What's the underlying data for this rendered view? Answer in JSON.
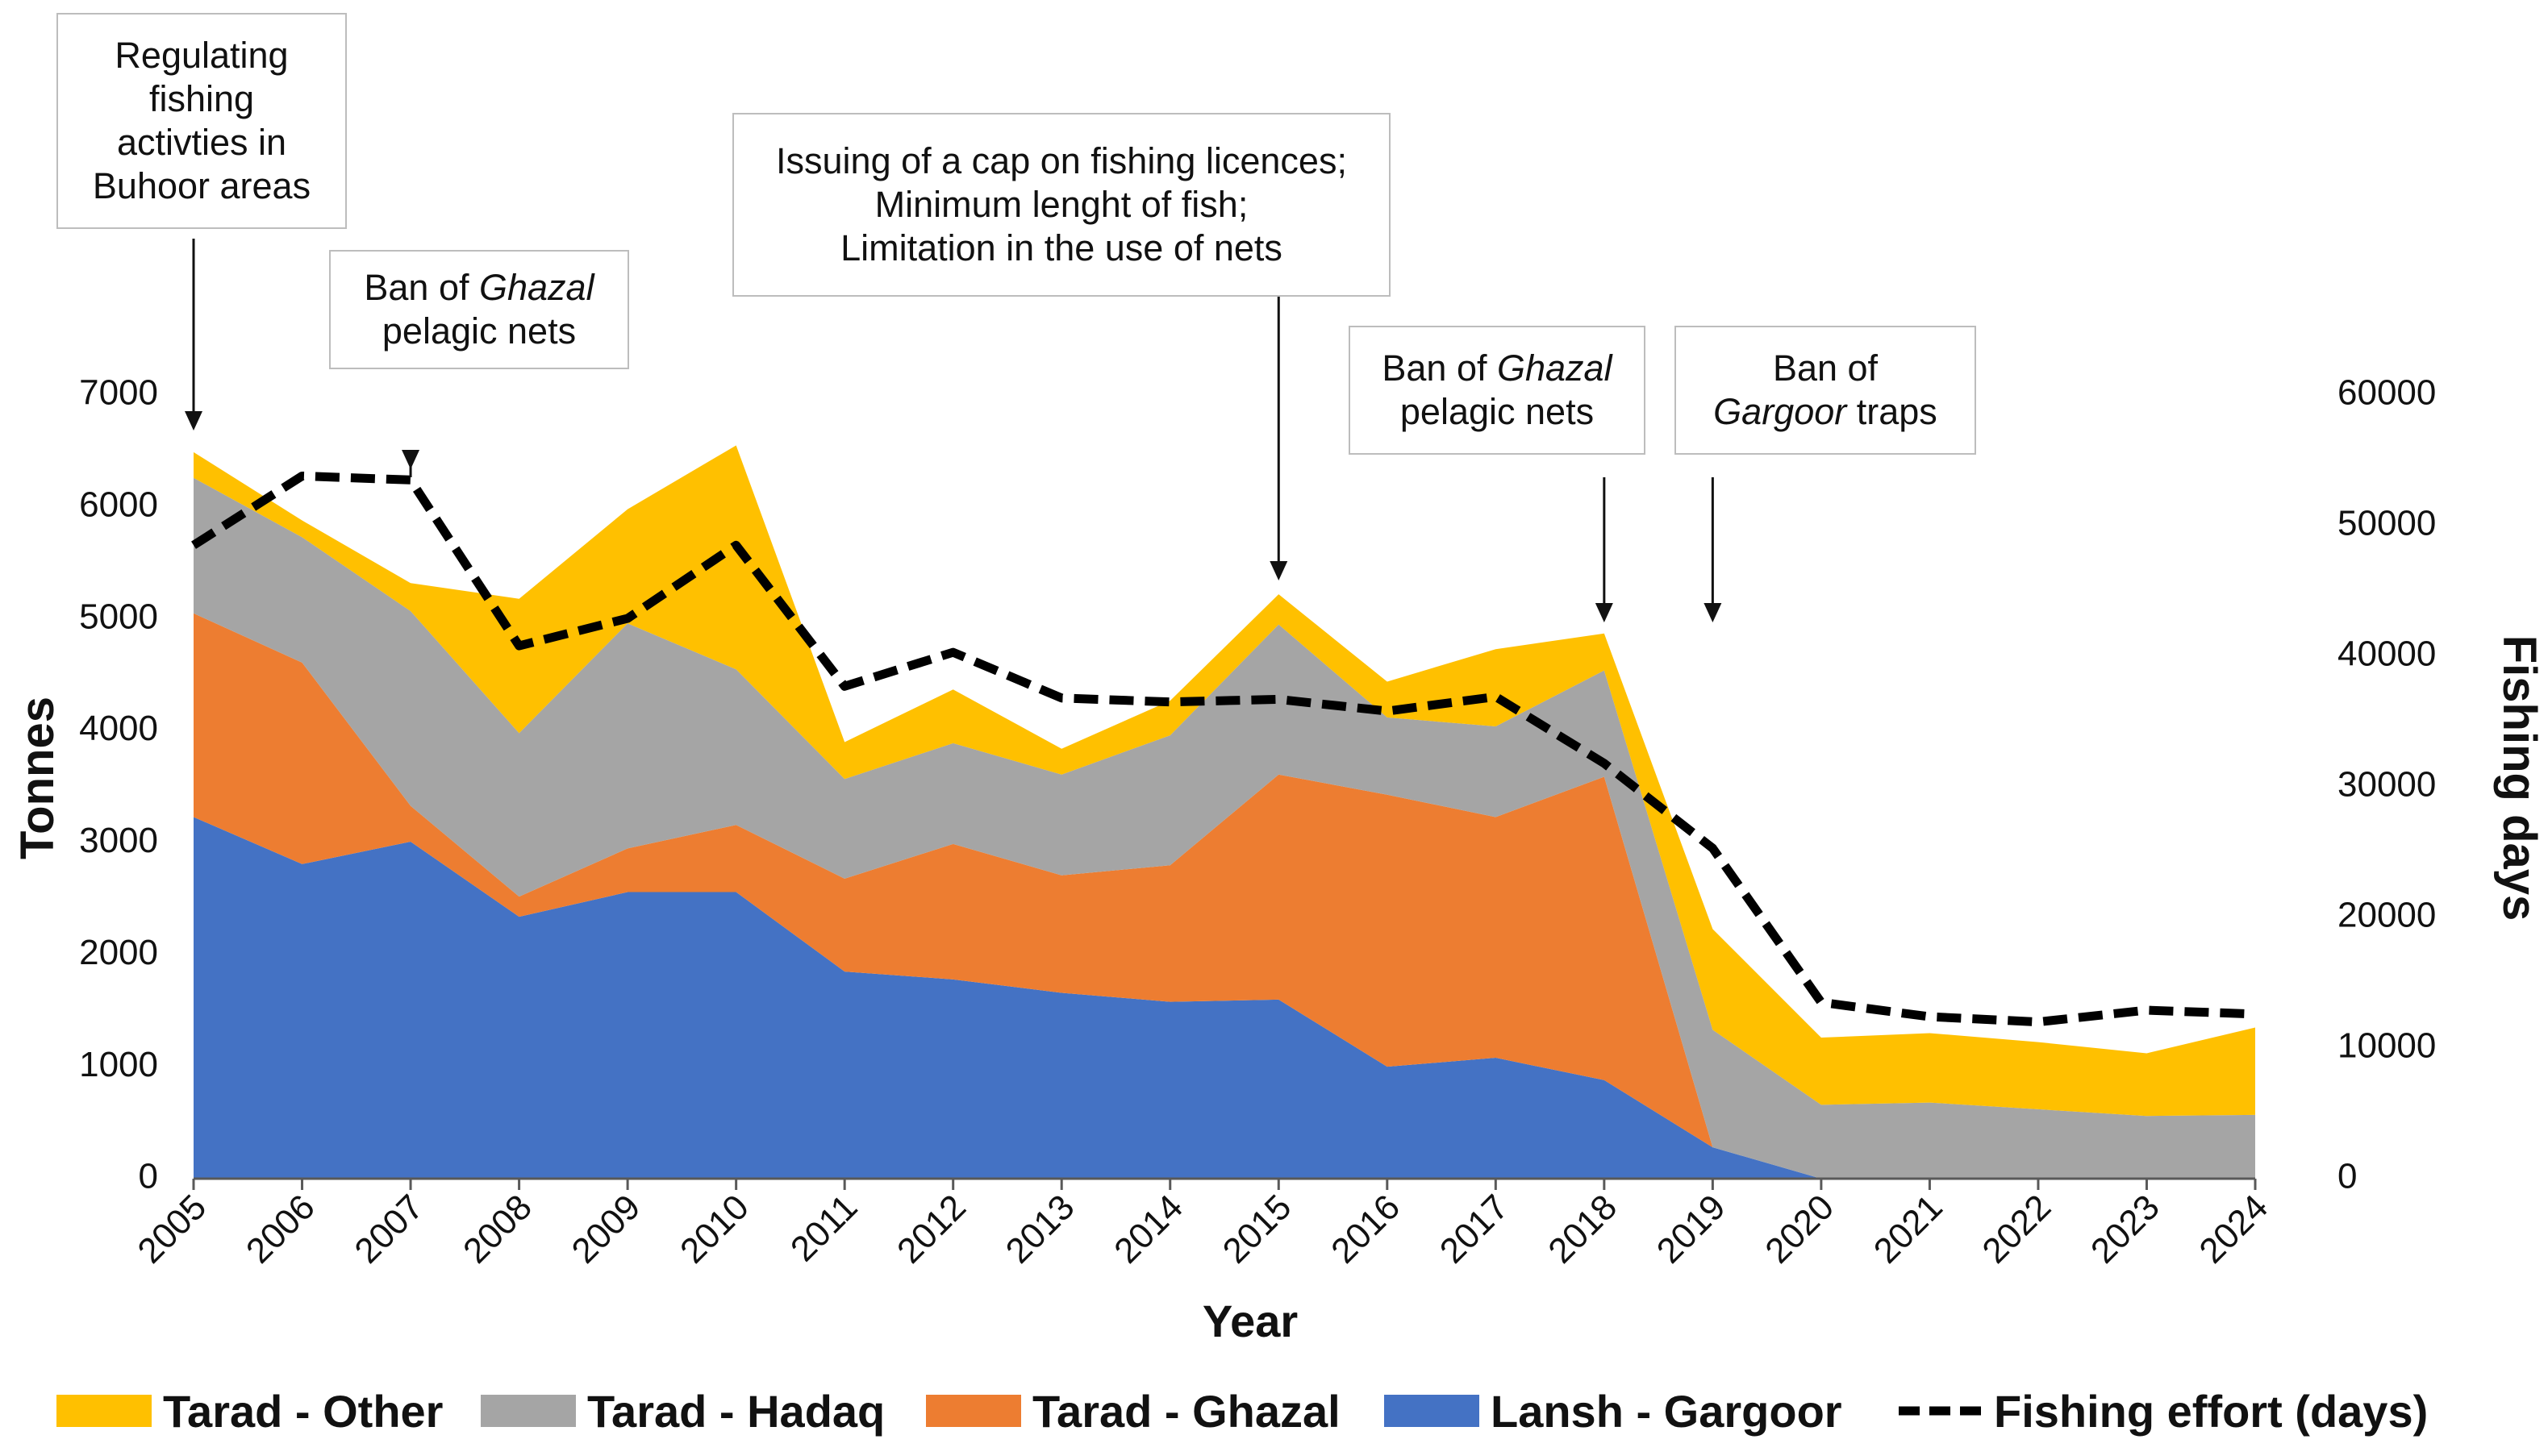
{
  "chart_data": {
    "type": "area",
    "x": [
      2005,
      2006,
      2007,
      2008,
      2009,
      2010,
      2011,
      2012,
      2013,
      2014,
      2015,
      2016,
      2017,
      2018,
      2019,
      2020,
      2021,
      2022,
      2023,
      2024
    ],
    "xlabel": "Year",
    "ylabel": "Tonnes",
    "y2label": "Fishing days",
    "ylim": [
      0,
      7000
    ],
    "y2lim": [
      0,
      60000
    ],
    "yticks": [
      0,
      1000,
      2000,
      3000,
      4000,
      5000,
      6000,
      7000
    ],
    "y2ticks": [
      0,
      10000,
      20000,
      30000,
      40000,
      50000,
      60000
    ],
    "stacked": true,
    "grid": false,
    "legend_position": "bottom",
    "series": [
      {
        "name": "Lansh - Gargoor",
        "color": "#4472C4",
        "axis": "left",
        "values": [
          3230,
          2810,
          3010,
          2340,
          2560,
          2560,
          1850,
          1780,
          1660,
          1580,
          1600,
          1000,
          1080,
          880,
          280,
          0,
          0,
          0,
          0,
          0
        ]
      },
      {
        "name": "Tarad - Ghazal",
        "color": "#ED7D31",
        "axis": "left",
        "values": [
          1820,
          1800,
          320,
          180,
          390,
          600,
          830,
          1210,
          1050,
          1220,
          2010,
          2430,
          2150,
          2710,
          0,
          0,
          0,
          0,
          0,
          0
        ]
      },
      {
        "name": "Tarad - Hadaq",
        "color": "#A5A5A5",
        "axis": "left",
        "values": [
          1210,
          1120,
          1740,
          1460,
          2010,
          1390,
          890,
          900,
          900,
          1160,
          1340,
          690,
          810,
          950,
          1050,
          660,
          680,
          620,
          560,
          570
        ]
      },
      {
        "name": "Tarad - Other",
        "color": "#FFC000",
        "axis": "left",
        "values": [
          230,
          150,
          250,
          1200,
          1020,
          2000,
          330,
          480,
          230,
          310,
          270,
          320,
          690,
          330,
          900,
          600,
          620,
          600,
          560,
          780
        ]
      },
      {
        "name": "Fishing effort (days)",
        "color": "#000000",
        "axis": "right",
        "style": "dashed",
        "values": [
          48500,
          53800,
          53500,
          40800,
          42900,
          48500,
          37700,
          40300,
          36800,
          36500,
          36700,
          35800,
          36900,
          31800,
          25300,
          13500,
          12400,
          12000,
          12900,
          12600
        ]
      }
    ],
    "annotations": [
      {
        "id": "ann1",
        "year": 2005,
        "lines": [
          {
            "parts": [
              {
                "text": "Regulating",
                "italic": false
              }
            ]
          },
          {
            "parts": [
              {
                "text": "fishing",
                "italic": false
              }
            ]
          },
          {
            "parts": [
              {
                "text": "activties in",
                "italic": false
              }
            ]
          },
          {
            "parts": [
              {
                "text": "Buhoor areas",
                "italic": false
              }
            ]
          }
        ]
      },
      {
        "id": "ann2",
        "year": 2007,
        "lines": [
          {
            "parts": [
              {
                "text": "Ban of ",
                "italic": false
              },
              {
                "text": "Ghazal",
                "italic": true
              }
            ]
          },
          {
            "parts": [
              {
                "text": "pelagic nets",
                "italic": false
              }
            ]
          }
        ]
      },
      {
        "id": "ann3",
        "year": 2015,
        "lines": [
          {
            "parts": [
              {
                "text": "Issuing of a cap on fishing licences;",
                "italic": false
              }
            ]
          },
          {
            "parts": [
              {
                "text": "Minimum lenght of fish;",
                "italic": false
              }
            ]
          },
          {
            "parts": [
              {
                "text": "Limitation in the use of  nets",
                "italic": false
              }
            ]
          }
        ]
      },
      {
        "id": "ann4",
        "year": 2018,
        "lines": [
          {
            "parts": [
              {
                "text": "Ban of ",
                "italic": false
              },
              {
                "text": "Ghazal",
                "italic": true
              }
            ]
          },
          {
            "parts": [
              {
                "text": "pelagic nets",
                "italic": false
              }
            ]
          }
        ]
      },
      {
        "id": "ann5",
        "year": 2019,
        "lines": [
          {
            "parts": [
              {
                "text": "Ban of",
                "italic": false
              }
            ]
          },
          {
            "parts": [
              {
                "text": "Gargoor",
                "italic": true
              },
              {
                "text": " traps",
                "italic": false
              }
            ]
          }
        ]
      }
    ]
  }
}
